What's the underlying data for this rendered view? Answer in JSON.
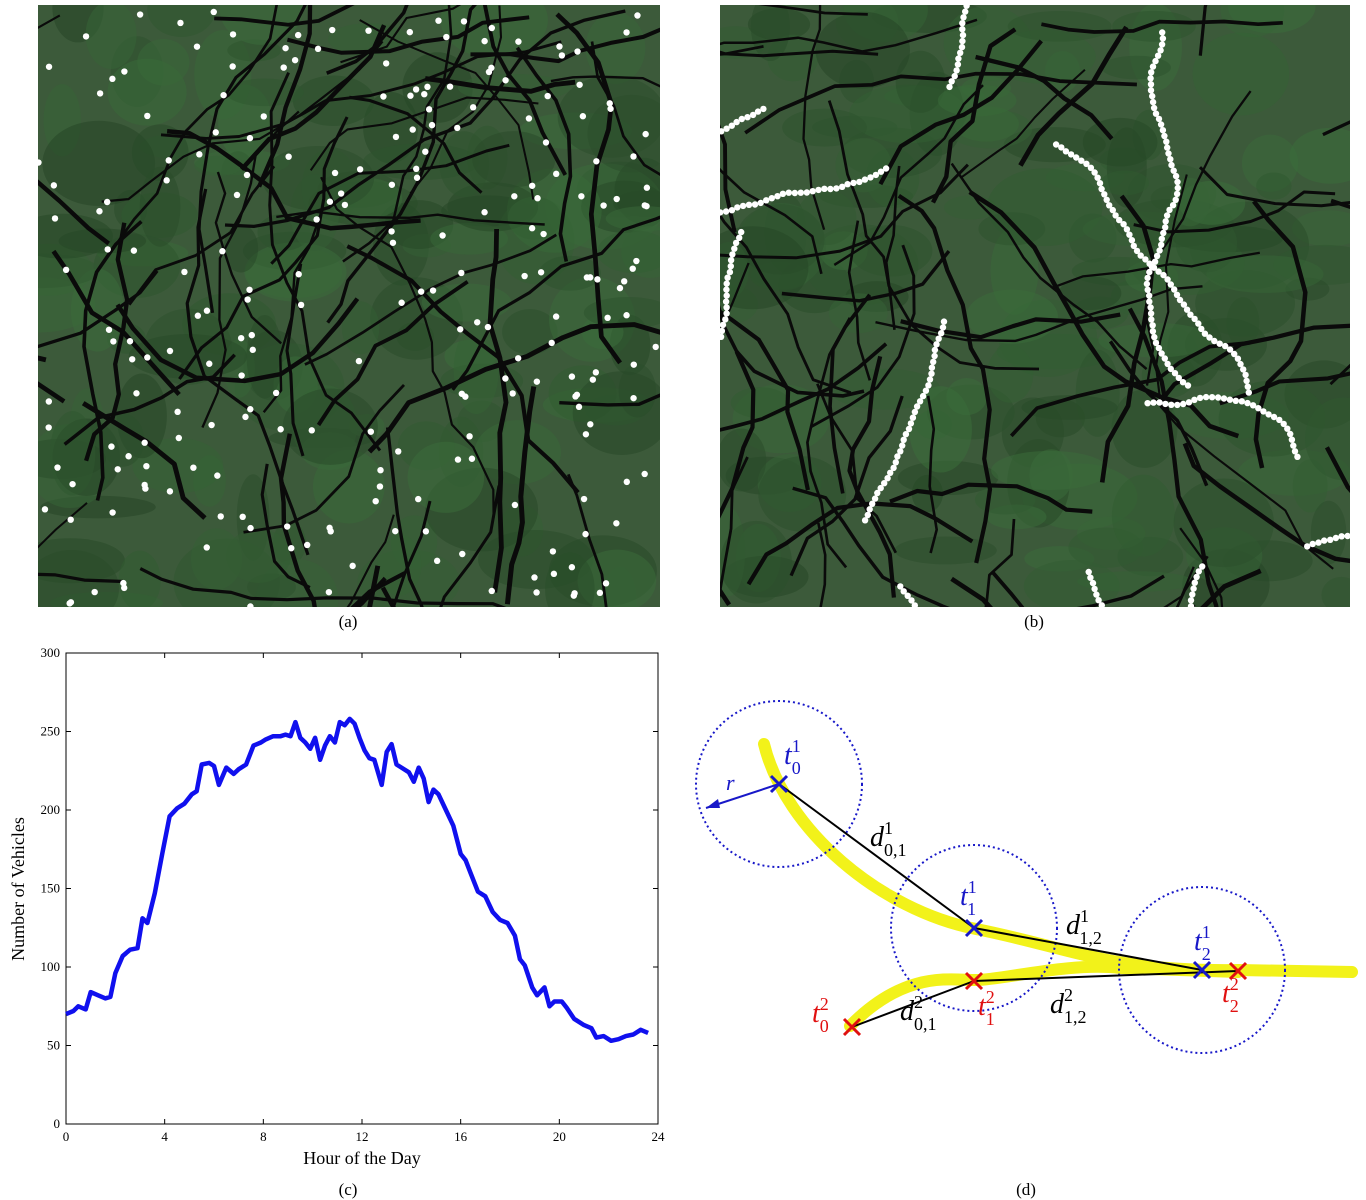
{
  "captions": {
    "a": "(a)",
    "b": "(b)",
    "c": "(c)",
    "d": "(d)"
  },
  "chart_data": {
    "type": "line",
    "xlabel": "Hour of the Day",
    "ylabel": "Number of Vehicles",
    "xlim": [
      0,
      24
    ],
    "ylim": [
      0,
      300
    ],
    "xticks": [
      0,
      4,
      8,
      12,
      16,
      20,
      24
    ],
    "yticks": [
      0,
      50,
      100,
      150,
      200,
      250,
      300
    ],
    "grid": false,
    "series": [
      {
        "color": "#1010ee",
        "points": [
          [
            0,
            70
          ],
          [
            0.3,
            72
          ],
          [
            0.5,
            75
          ],
          [
            0.8,
            73
          ],
          [
            1.0,
            84
          ],
          [
            1.3,
            82
          ],
          [
            1.6,
            80
          ],
          [
            1.8,
            81
          ],
          [
            2.0,
            96
          ],
          [
            2.3,
            107
          ],
          [
            2.6,
            111
          ],
          [
            2.9,
            112
          ],
          [
            3.1,
            131
          ],
          [
            3.3,
            128
          ],
          [
            3.6,
            147
          ],
          [
            3.9,
            172
          ],
          [
            4.2,
            196
          ],
          [
            4.5,
            201
          ],
          [
            4.8,
            204
          ],
          [
            5.1,
            210
          ],
          [
            5.3,
            212
          ],
          [
            5.5,
            229
          ],
          [
            5.8,
            230
          ],
          [
            6.0,
            228
          ],
          [
            6.2,
            216
          ],
          [
            6.5,
            227
          ],
          [
            6.8,
            223
          ],
          [
            7.0,
            226
          ],
          [
            7.3,
            229
          ],
          [
            7.6,
            241
          ],
          [
            7.9,
            243
          ],
          [
            8.1,
            245
          ],
          [
            8.4,
            247
          ],
          [
            8.7,
            247
          ],
          [
            8.9,
            248
          ],
          [
            9.1,
            247
          ],
          [
            9.3,
            256
          ],
          [
            9.5,
            246
          ],
          [
            9.7,
            243
          ],
          [
            9.9,
            239
          ],
          [
            10.1,
            246
          ],
          [
            10.3,
            232
          ],
          [
            10.5,
            241
          ],
          [
            10.7,
            247
          ],
          [
            10.9,
            243
          ],
          [
            11.1,
            256
          ],
          [
            11.3,
            254
          ],
          [
            11.5,
            258
          ],
          [
            11.7,
            255
          ],
          [
            11.9,
            246
          ],
          [
            12.1,
            238
          ],
          [
            12.3,
            233
          ],
          [
            12.5,
            232
          ],
          [
            12.8,
            216
          ],
          [
            13.0,
            237
          ],
          [
            13.2,
            242
          ],
          [
            13.4,
            229
          ],
          [
            13.6,
            227
          ],
          [
            13.9,
            224
          ],
          [
            14.1,
            218
          ],
          [
            14.3,
            227
          ],
          [
            14.5,
            220
          ],
          [
            14.7,
            205
          ],
          [
            14.9,
            213
          ],
          [
            15.1,
            210
          ],
          [
            15.4,
            200
          ],
          [
            15.7,
            190
          ],
          [
            16.0,
            172
          ],
          [
            16.2,
            168
          ],
          [
            16.4,
            160
          ],
          [
            16.7,
            148
          ],
          [
            17.0,
            145
          ],
          [
            17.3,
            135
          ],
          [
            17.6,
            130
          ],
          [
            17.9,
            128
          ],
          [
            18.2,
            120
          ],
          [
            18.4,
            105
          ],
          [
            18.6,
            101
          ],
          [
            18.9,
            87
          ],
          [
            19.1,
            82
          ],
          [
            19.4,
            87
          ],
          [
            19.6,
            75
          ],
          [
            19.8,
            78
          ],
          [
            20.1,
            78
          ],
          [
            20.3,
            74
          ],
          [
            20.6,
            67
          ],
          [
            21.0,
            63
          ],
          [
            21.3,
            61
          ],
          [
            21.5,
            55
          ],
          [
            21.8,
            56
          ],
          [
            22.1,
            53
          ],
          [
            22.4,
            54
          ],
          [
            22.7,
            56
          ],
          [
            23.0,
            57
          ],
          [
            23.3,
            60
          ],
          [
            23.6,
            58
          ]
        ]
      }
    ]
  },
  "diagram": {
    "radius_label": "r",
    "nodes": [
      {
        "id": "t10",
        "base": "t",
        "sup": "1",
        "sub": "0",
        "color": "#1818c8"
      },
      {
        "id": "t11",
        "base": "t",
        "sup": "1",
        "sub": "1",
        "color": "#1818c8"
      },
      {
        "id": "t12",
        "base": "t",
        "sup": "1",
        "sub": "2",
        "color": "#1818c8"
      },
      {
        "id": "t20",
        "base": "t",
        "sup": "2",
        "sub": "0",
        "color": "#e01010"
      },
      {
        "id": "t21",
        "base": "t",
        "sup": "2",
        "sub": "1",
        "color": "#e01010"
      },
      {
        "id": "t22",
        "base": "t",
        "sup": "2",
        "sub": "2",
        "color": "#e01010"
      }
    ],
    "edges": [
      {
        "id": "d101",
        "base": "d",
        "sup": "1",
        "sub": "0,1"
      },
      {
        "id": "d112",
        "base": "d",
        "sup": "1",
        "sub": "1,2"
      },
      {
        "id": "d201",
        "base": "d",
        "sup": "2",
        "sub": "0,1"
      },
      {
        "id": "d212",
        "base": "d",
        "sup": "2",
        "sub": "1,2"
      }
    ],
    "colors": {
      "road": "#f2f21a",
      "circle": "#1818c8",
      "edge": "#000000"
    }
  },
  "maps": {
    "terrain_color": "#3c5a3a",
    "road_color": "#0a0a0a",
    "point_color": "#ffffff"
  }
}
